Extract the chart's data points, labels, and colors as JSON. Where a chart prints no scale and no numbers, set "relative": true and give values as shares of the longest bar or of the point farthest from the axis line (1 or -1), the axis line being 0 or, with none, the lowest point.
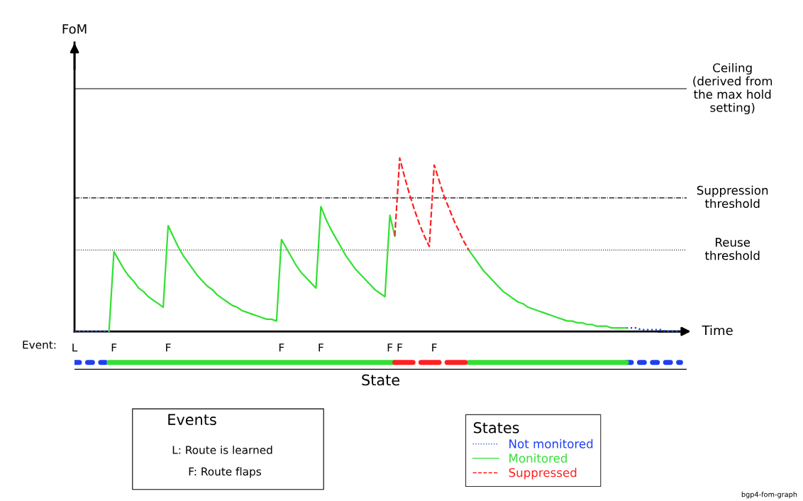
{
  "chart_data": {
    "type": "line",
    "relative": true,
    "xlabel": "Time",
    "legend_title": "States",
    "legend": "bottom",
    "marker": "none",
    "grid": false,
    "categories": [
      "L",
      null,
      null,
      null,
      null,
      null,
      null,
      null,
      "F",
      null,
      null,
      null,
      null,
      null,
      null,
      null,
      null,
      null,
      null,
      "F",
      null,
      null,
      null,
      null,
      null,
      null,
      null,
      null,
      null,
      null,
      null,
      null,
      null,
      null,
      null,
      null,
      null,
      null,
      null,
      null,
      null,
      null,
      "F",
      null,
      null,
      null,
      null,
      null,
      null,
      null,
      "F",
      null,
      null,
      null,
      null,
      null,
      null,
      null,
      null,
      null,
      null,
      null,
      null,
      null,
      "F",
      null,
      "F",
      null,
      null,
      null,
      null,
      null,
      null,
      "F",
      null,
      null,
      null,
      null,
      null,
      null,
      null,
      null,
      null,
      null,
      null,
      null,
      null,
      null,
      null,
      null,
      null,
      null,
      null,
      null,
      null,
      null,
      null,
      null,
      null,
      null,
      null,
      null,
      null,
      null,
      null,
      null,
      null,
      null,
      null,
      null,
      null,
      null,
      null,
      null,
      null,
      null,
      null,
      null,
      null,
      null,
      null,
      null,
      null,
      null
    ],
    "series": [
      {
        "name": "Not monitored",
        "color": "#1f3ff0",
        "line_style": "dotted",
        "values": [
          0,
          0,
          0,
          0,
          0,
          0,
          0,
          0,
          null,
          null,
          null,
          null,
          null,
          null,
          null,
          null,
          null,
          null,
          null,
          null,
          null,
          null,
          null,
          null,
          null,
          null,
          null,
          null,
          null,
          null,
          null,
          null,
          null,
          null,
          null,
          null,
          null,
          null,
          null,
          null,
          null,
          null,
          null,
          null,
          null,
          null,
          null,
          null,
          null,
          null,
          null,
          null,
          null,
          null,
          null,
          null,
          null,
          null,
          null,
          null,
          null,
          null,
          null,
          null,
          null,
          null,
          null,
          null,
          null,
          null,
          null,
          null,
          null,
          null,
          null,
          null,
          null,
          null,
          null,
          null,
          null,
          null,
          null,
          null,
          null,
          null,
          null,
          null,
          null,
          null,
          null,
          null,
          null,
          null,
          null,
          null,
          null,
          null,
          null,
          null,
          null,
          null,
          null,
          null,
          null,
          null,
          null,
          null,
          null,
          null,
          null,
          null,
          0.02,
          0.02,
          0.02,
          0.01,
          0.01,
          0.01,
          0.01,
          0.01,
          0,
          0,
          0,
          0
        ]
      },
      {
        "name": "Monitored",
        "color": "#33e033",
        "line_style": "solid",
        "values": [
          null,
          null,
          null,
          null,
          null,
          null,
          null,
          0,
          0.46,
          0.41,
          0.36,
          0.32,
          0.29,
          0.25,
          0.23,
          0.2,
          0.18,
          0.16,
          0.14,
          0.61,
          0.55,
          0.49,
          0.44,
          0.4,
          0.36,
          0.32,
          0.29,
          0.26,
          0.24,
          0.21,
          0.19,
          0.17,
          0.15,
          0.14,
          0.12,
          0.11,
          0.1,
          0.09,
          0.08,
          0.07,
          0.07,
          0.06,
          0.53,
          0.48,
          0.43,
          0.38,
          0.34,
          0.31,
          0.28,
          0.25,
          0.72,
          0.65,
          0.59,
          0.54,
          0.49,
          0.44,
          0.4,
          0.36,
          0.33,
          0.3,
          0.27,
          0.24,
          0.22,
          0.2,
          0.67,
          0.55,
          null,
          null,
          null,
          null,
          null,
          null,
          null,
          null,
          null,
          null,
          null,
          null,
          null,
          null,
          0.47,
          0.43,
          0.39,
          0.35,
          0.32,
          0.29,
          0.26,
          0.23,
          0.21,
          0.19,
          0.17,
          0.16,
          0.14,
          0.13,
          0.12,
          0.11,
          0.1,
          0.09,
          0.08,
          0.07,
          0.06,
          0.06,
          0.05,
          0.05,
          0.04,
          0.04,
          0.03,
          0.03,
          0.03,
          0.02,
          0.02,
          0.02,
          0.02,
          null,
          null,
          null,
          null,
          null,
          null,
          null,
          null,
          null,
          null,
          null
        ]
      },
      {
        "name": "Suppressed",
        "color": "#ff2020",
        "line_style": "dashed",
        "values": [
          null,
          null,
          null,
          null,
          null,
          null,
          null,
          null,
          null,
          null,
          null,
          null,
          null,
          null,
          null,
          null,
          null,
          null,
          null,
          null,
          null,
          null,
          null,
          null,
          null,
          null,
          null,
          null,
          null,
          null,
          null,
          null,
          null,
          null,
          null,
          null,
          null,
          null,
          null,
          null,
          null,
          null,
          null,
          null,
          null,
          null,
          null,
          null,
          null,
          null,
          null,
          null,
          null,
          null,
          null,
          null,
          null,
          null,
          null,
          null,
          null,
          null,
          null,
          null,
          null,
          0.55,
          1.0,
          0.89,
          0.79,
          0.7,
          0.62,
          0.55,
          0.49,
          0.96,
          0.87,
          0.78,
          0.71,
          0.64,
          0.58,
          0.52,
          0.47,
          null,
          null,
          null,
          null,
          null,
          null,
          null,
          null,
          null,
          null,
          null,
          null,
          null,
          null,
          null,
          null,
          null,
          null,
          null,
          null,
          null,
          null,
          null,
          null,
          null,
          null,
          null,
          null,
          null,
          null,
          null,
          null,
          null,
          null,
          null,
          null,
          null,
          null,
          null,
          null,
          null,
          null,
          null
        ]
      }
    ],
    "ref_lines": [
      {
        "axis": "y",
        "value": 1.4,
        "label": "Ceiling\n(derived from\nthe max hold\nsetting)",
        "color": "#000000",
        "line_style": "solid"
      },
      {
        "axis": "y",
        "value": 0.77,
        "label": "Suppression\nthreshold",
        "color": "#000000",
        "line_style": "dashdot"
      },
      {
        "axis": "y",
        "value": 0.47,
        "label": "Reuse\nthreshold",
        "color": "#000000",
        "line_style": "dotted"
      }
    ],
    "annotations": [
      "Event:",
      "State",
      "Events",
      "L: Route is learned",
      "F: Route flaps",
      "bgp4-fom-graph",
      "FoM"
    ]
  }
}
